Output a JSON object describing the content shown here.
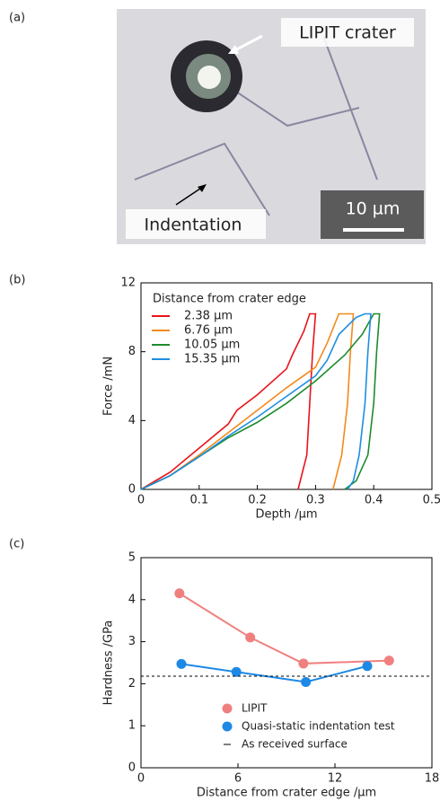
{
  "labels": [
    "(a)",
    "(b)",
    "(c)"
  ],
  "image": {
    "crater_label": "LIPIT crater",
    "indent_label": "Indentation",
    "scale_label": "10 µm"
  },
  "chart_data": [
    {
      "type": "line",
      "x_label": "Depth /µm",
      "y_label": "Force /mN",
      "legend_title": "Distance from crater edge",
      "xlim": [
        0,
        0.5
      ],
      "xticks": [
        0,
        0.1,
        0.2,
        0.3,
        0.4,
        0.5
      ],
      "ylim": [
        0,
        12
      ],
      "yticks": [
        0,
        4,
        8,
        12
      ],
      "series": [
        {
          "name": "2.38 µm",
          "color": "#e8141c",
          "x": [
            0,
            0.05,
            0.1,
            0.15,
            0.165,
            0.2,
            0.25,
            0.26,
            0.28,
            0.29,
            0.3,
            0.295,
            0.29,
            0.285,
            0.27
          ],
          "values": [
            0,
            1,
            2.4,
            3.8,
            4.6,
            5.5,
            7,
            7.8,
            9.2,
            10.2,
            10.2,
            8,
            5,
            2,
            0
          ]
        },
        {
          "name": "6.76 µm",
          "color": "#f28a1c",
          "x": [
            0,
            0.05,
            0.1,
            0.15,
            0.2,
            0.25,
            0.3,
            0.32,
            0.34,
            0.365,
            0.36,
            0.355,
            0.345,
            0.33
          ],
          "values": [
            0,
            0.8,
            2,
            3.3,
            4.6,
            5.9,
            7.1,
            8.5,
            10.2,
            10.2,
            8,
            5,
            2,
            0
          ]
        },
        {
          "name": "10.05 µm",
          "color": "#1f8a2e",
          "x": [
            0,
            0.05,
            0.1,
            0.15,
            0.2,
            0.25,
            0.3,
            0.35,
            0.38,
            0.4,
            0.41,
            0.405,
            0.4,
            0.39,
            0.37,
            0.35
          ],
          "values": [
            0,
            0.8,
            1.9,
            3,
            3.9,
            5,
            6.3,
            7.8,
            9,
            10.2,
            10.2,
            8,
            5,
            2,
            0.5,
            0
          ]
        },
        {
          "name": "15.35 µm",
          "color": "#1e8ee0",
          "x": [
            0,
            0.05,
            0.1,
            0.15,
            0.2,
            0.25,
            0.3,
            0.32,
            0.34,
            0.37,
            0.385,
            0.395,
            0.39,
            0.385,
            0.375,
            0.365,
            0.355
          ],
          "values": [
            0,
            0.8,
            1.9,
            3.1,
            4.2,
            5.4,
            6.6,
            7.5,
            9,
            10,
            10.2,
            10.2,
            8,
            5,
            2,
            0.5,
            0
          ]
        }
      ]
    },
    {
      "type": "line",
      "x_label": "Distance from crater edge /µm",
      "y_label": "Hardness /GPa",
      "xlim": [
        0,
        18
      ],
      "xticks": [
        0,
        6,
        12,
        18
      ],
      "ylim": [
        0,
        5
      ],
      "yticks": [
        0,
        1,
        2,
        3,
        4,
        5
      ],
      "series": [
        {
          "name": "LIPIT",
          "color": "#f08080",
          "x": [
            2.38,
            6.76,
            10.05,
            15.35
          ],
          "values": [
            4.15,
            3.1,
            2.48,
            2.55
          ]
        },
        {
          "name": "Quasi-static indentation test",
          "color": "#1e88e5",
          "x": [
            2.5,
            5.9,
            10.2,
            14
          ],
          "values": [
            2.47,
            2.28,
            2.04,
            2.42
          ]
        },
        {
          "name": "As received surface",
          "color": "#000000",
          "hline": 2.18
        }
      ]
    }
  ]
}
